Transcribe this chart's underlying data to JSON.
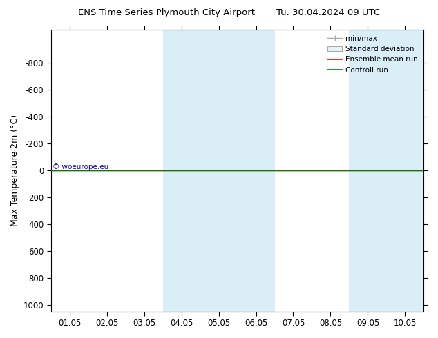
{
  "title_left": "ENS Time Series Plymouth City Airport",
  "title_right": "Tu. 30.04.2024 09 UTC",
  "ylabel": "Max Temperature 2m (°C)",
  "ylim_top": -1050,
  "ylim_bottom": 1050,
  "yticks": [
    -800,
    -600,
    -400,
    -200,
    0,
    200,
    400,
    600,
    800,
    1000
  ],
  "xtick_labels": [
    "01.05",
    "02.05",
    "03.05",
    "04.05",
    "05.05",
    "06.05",
    "07.05",
    "08.05",
    "09.05",
    "10.05"
  ],
  "xtick_positions": [
    0,
    1,
    2,
    3,
    4,
    5,
    6,
    7,
    8,
    9
  ],
  "xlim": [
    -0.5,
    9.5
  ],
  "shaded_regions": [
    {
      "xmin": 2.5,
      "xmax": 3.5,
      "color": "#daeef8"
    },
    {
      "xmin": 3.5,
      "xmax": 5.5,
      "color": "#daeef8"
    },
    {
      "xmin": 7.5,
      "xmax": 9.5,
      "color": "#daeef8"
    }
  ],
  "green_line_y": 0,
  "red_line_y": 0,
  "minmax_line_color": "#aaaaaa",
  "stddev_fill_color": "#cccccc",
  "legend_entries": [
    "min/max",
    "Standard deviation",
    "Ensemble mean run",
    "Controll run"
  ],
  "copyright_text": "© woeurope.eu",
  "copyright_color": "#0000bb",
  "background_color": "white",
  "plot_bg_color": "white",
  "fig_width": 6.34,
  "fig_height": 4.9,
  "dpi": 100
}
